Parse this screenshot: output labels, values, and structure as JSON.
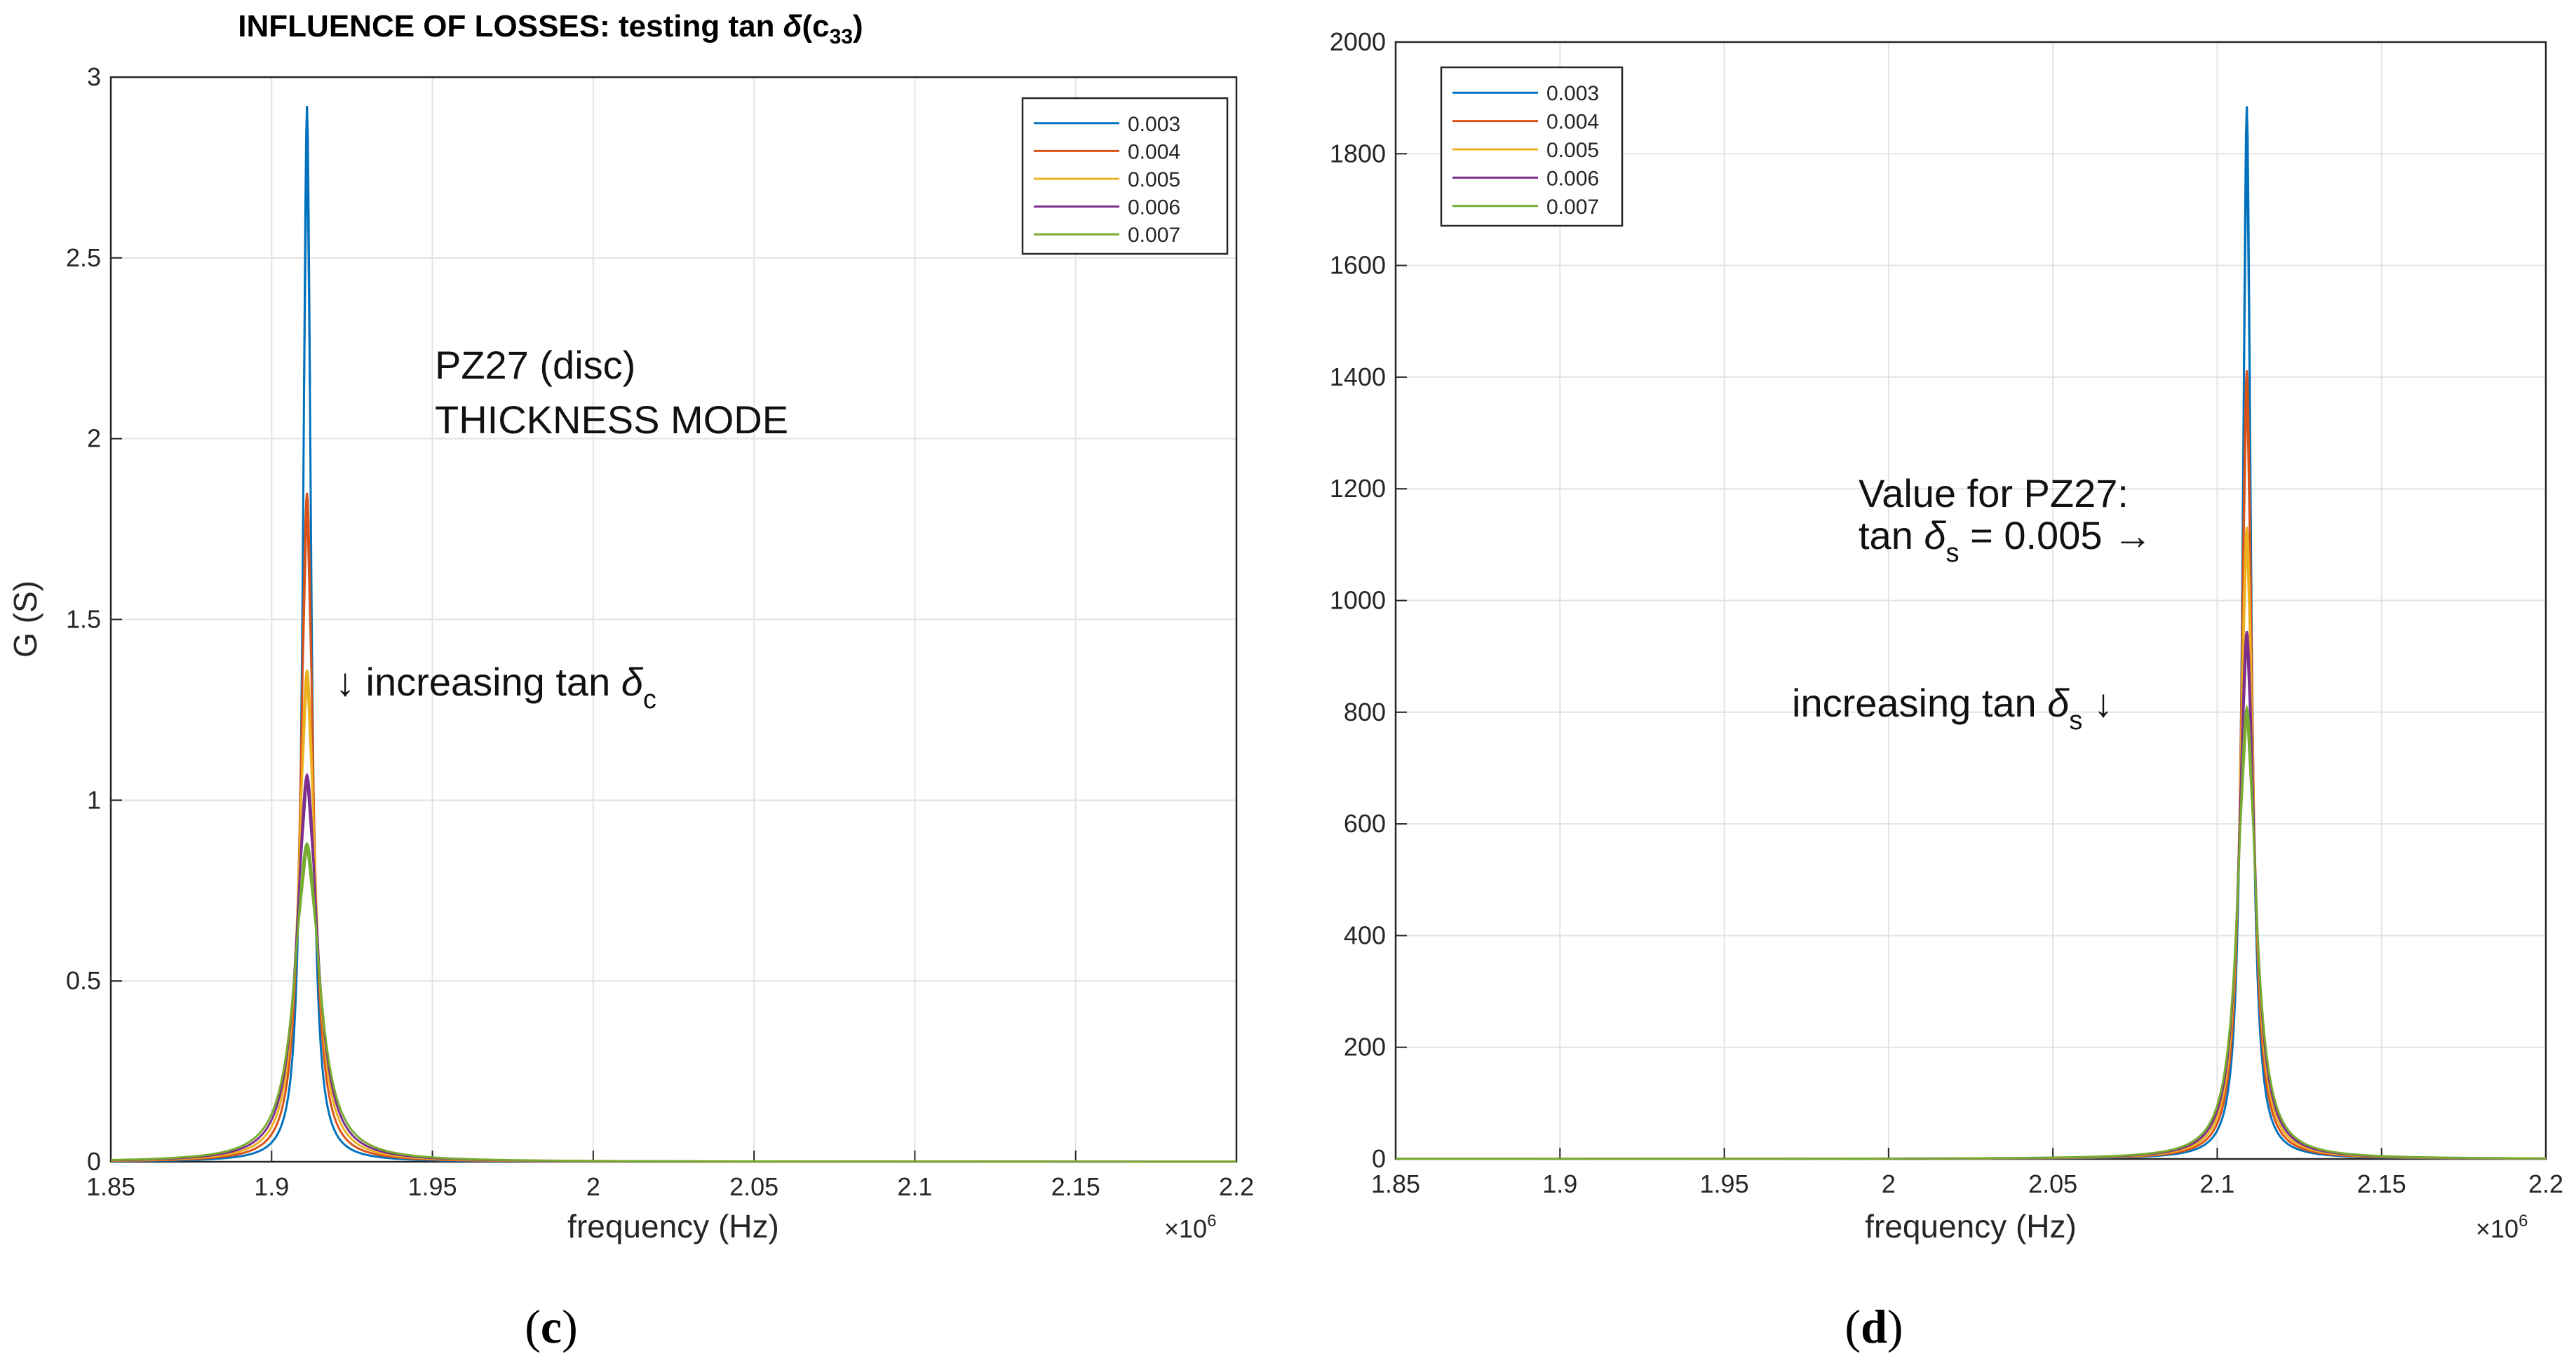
{
  "series_colors": [
    "#0072BD",
    "#D95319",
    "#EDB120",
    "#7E2F8E",
    "#77AC30"
  ],
  "chart_data": [
    {
      "type": "line",
      "panel": "c",
      "panel_label": "c",
      "title": "INFLUENCE OF LOSSES: testing tan δ(c33)",
      "title_parts": [
        "INFLUENCE OF LOSSES: testing tan ",
        "δ",
        "(c",
        "33",
        ")"
      ],
      "xlabel": "frequency (Hz)",
      "ylabel": "G (S)",
      "xlim": [
        1850000,
        2200000
      ],
      "ylim": [
        0,
        3
      ],
      "x_ticks": [
        1850000,
        1900000,
        1950000,
        2000000,
        2050000,
        2100000,
        2150000,
        2200000
      ],
      "x_tick_labels": [
        "1.85",
        "1.9",
        "1.95",
        "2",
        "2.05",
        "2.1",
        "2.15",
        "2.2"
      ],
      "x_exponent_label": "×10",
      "x_exponent": "6",
      "y_ticks": [
        0,
        0.5,
        1,
        1.5,
        2,
        2.5,
        3
      ],
      "y_tick_labels": [
        "0",
        "0.5",
        "1",
        "1.5",
        "2",
        "2.5",
        "3"
      ],
      "grid": true,
      "legend_position": "top-right",
      "resonance_frequency_hz": 1911000,
      "series": [
        {
          "name": "0.003",
          "peak": 2.92
        },
        {
          "name": "0.004",
          "peak": 1.85
        },
        {
          "name": "0.005",
          "peak": 1.36
        },
        {
          "name": "0.006",
          "peak": 1.07
        },
        {
          "name": "0.007",
          "peak": 0.88
        }
      ],
      "annotations": {
        "label1": "PZ27 (disc)",
        "label2": "THICKNESS MODE",
        "arrow_text_parts": [
          "↓ increasing tan ",
          "δ",
          "c",
          ""
        ]
      }
    },
    {
      "type": "line",
      "panel": "d",
      "panel_label": "d",
      "title": "",
      "xlabel": "frequency (Hz)",
      "ylabel": "",
      "xlim": [
        1850000,
        2200000
      ],
      "ylim": [
        0,
        2000
      ],
      "x_ticks": [
        1850000,
        1900000,
        1950000,
        2000000,
        2050000,
        2100000,
        2150000,
        2200000
      ],
      "x_tick_labels": [
        "1.85",
        "1.9",
        "1.95",
        "2",
        "2.05",
        "2.1",
        "2.15",
        "2.2"
      ],
      "x_exponent_label": "×10",
      "x_exponent": "6",
      "y_ticks": [
        0,
        200,
        400,
        600,
        800,
        1000,
        1200,
        1400,
        1600,
        1800,
        2000
      ],
      "y_tick_labels": [
        "0",
        "200",
        "400",
        "600",
        "800",
        "1000",
        "1200",
        "1400",
        "1600",
        "1800",
        "2000"
      ],
      "grid": true,
      "legend_position": "top-left",
      "resonance_frequency_hz": 2109000,
      "series": [
        {
          "name": "0.003",
          "peak": 1885
        },
        {
          "name": "0.004",
          "peak": 1412
        },
        {
          "name": "0.005",
          "peak": 1132
        },
        {
          "name": "0.006",
          "peak": 945
        },
        {
          "name": "0.007",
          "peak": 808
        }
      ],
      "annotations": {
        "label1": "Value for PZ27:",
        "line2_parts": [
          "tan ",
          "δ",
          "s",
          " = 0.005 →"
        ],
        "arrow_text_parts": [
          "increasing tan ",
          "δ",
          "s",
          " ↓"
        ]
      }
    }
  ]
}
